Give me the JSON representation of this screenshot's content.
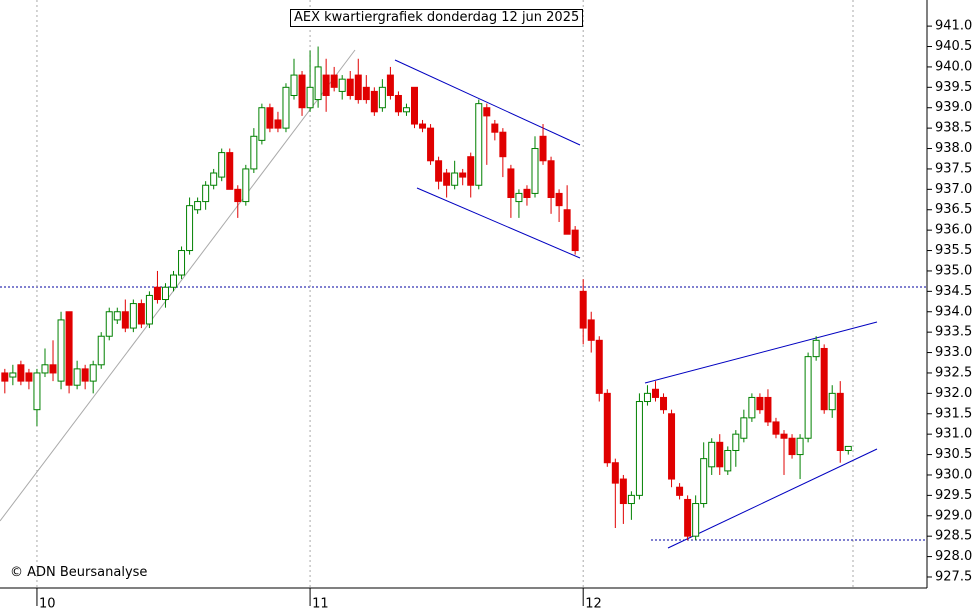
{
  "chart_data": {
    "type": "candlestick",
    "title": "AEX kwartiergrafiek donderdag 12 jun 2025",
    "credit": "© ADN Beursanalyse",
    "x": [
      -4,
      -3,
      -2,
      -1,
      0,
      1,
      2,
      3,
      4,
      5,
      6,
      7,
      8,
      9,
      10,
      11,
      12,
      13,
      14,
      15,
      16,
      17,
      18,
      19,
      20,
      21,
      22,
      23,
      24,
      25,
      26,
      27,
      28,
      29,
      30,
      31,
      32,
      33,
      34,
      35,
      36,
      37,
      38,
      39,
      40,
      41,
      42,
      43,
      44,
      45,
      46,
      47,
      48,
      49,
      50,
      51,
      52,
      53,
      54,
      55,
      56,
      57,
      58,
      59,
      60,
      61,
      62,
      63,
      64,
      65,
      66,
      67,
      68,
      69,
      70,
      71,
      72,
      73,
      74,
      75,
      76,
      77,
      78,
      79,
      80,
      81,
      82,
      83,
      84,
      85,
      86,
      87,
      88,
      89,
      90,
      91,
      92,
      93,
      94,
      95,
      96,
      97,
      98,
      99,
      100,
      101
    ],
    "open": [
      932.5,
      932.4,
      932.7,
      932.5,
      931.6,
      932.5,
      932.7,
      932.3,
      934.0,
      932.2,
      932.6,
      932.3,
      932.7,
      933.4,
      933.8,
      934.0,
      933.6,
      934.2,
      933.7,
      934.6,
      934.3,
      934.6,
      934.9,
      935.5,
      936.5,
      936.7,
      937.1,
      937.3,
      937.9,
      937.0,
      936.7,
      937.5,
      938.2,
      939.0,
      938.7,
      938.5,
      939.3,
      939.8,
      939.0,
      939.2,
      939.8,
      939.8,
      939.4,
      939.7,
      939.8,
      939.5,
      939.4,
      939.0,
      939.8,
      939.3,
      938.9,
      939.5,
      938.6,
      938.5,
      937.7,
      937.4,
      937.1,
      937.4,
      937.8,
      937.1,
      939.0,
      938.6,
      938.4,
      937.5,
      936.7,
      937.0,
      936.9,
      938.3,
      937.7,
      936.9,
      936.5,
      936.0,
      934.5,
      933.8,
      933.3,
      932.0,
      930.3,
      929.9,
      929.3,
      929.5,
      931.8,
      932.1,
      931.9,
      931.5,
      929.7,
      929.4,
      928.5,
      929.3,
      930.2,
      930.8,
      930.1,
      930.6,
      930.9,
      931.4,
      931.9,
      931.9,
      931.3,
      931.0,
      930.9,
      930.5,
      930.9,
      932.9,
      933.1,
      931.6,
      932.0,
      930.6
    ],
    "high": [
      932.6,
      932.7,
      932.8,
      932.6,
      932.6,
      933.1,
      933.3,
      934.0,
      934.0,
      932.8,
      932.7,
      932.8,
      933.5,
      934.1,
      934.1,
      934.3,
      934.3,
      934.3,
      934.5,
      935.0,
      934.7,
      935.0,
      935.6,
      936.8,
      936.8,
      937.2,
      937.5,
      938.0,
      938.0,
      937.1,
      937.6,
      938.5,
      939.1,
      939.1,
      938.9,
      939.6,
      940.2,
      939.9,
      940.4,
      940.5,
      940.2,
      940.0,
      939.8,
      939.9,
      940.2,
      939.8,
      939.5,
      939.7,
      940.0,
      939.4,
      939.1,
      939.5,
      938.7,
      938.6,
      937.8,
      937.5,
      937.7,
      937.5,
      937.9,
      939.2,
      939.1,
      938.7,
      938.5,
      937.6,
      937.0,
      937.1,
      938.3,
      938.6,
      937.8,
      937.0,
      937.1,
      936.1,
      934.8,
      934.0,
      933.4,
      932.1,
      930.4,
      930.0,
      929.6,
      932.0,
      932.2,
      932.3,
      932.0,
      931.6,
      929.8,
      929.5,
      929.5,
      930.8,
      930.9,
      931.0,
      930.7,
      931.1,
      931.6,
      932.0,
      932.0,
      932.1,
      931.4,
      931.1,
      931.0,
      931.0,
      933.0,
      933.4,
      933.2,
      932.2,
      932.3,
      930.7
    ],
    "low": [
      932.0,
      932.2,
      932.2,
      932.1,
      931.2,
      932.4,
      932.3,
      932.1,
      932.0,
      932.1,
      932.1,
      932.0,
      932.6,
      933.3,
      933.7,
      933.5,
      933.5,
      933.6,
      933.6,
      934.2,
      934.1,
      934.5,
      934.8,
      935.4,
      936.4,
      936.5,
      937.0,
      937.2,
      937.0,
      936.3,
      936.6,
      937.4,
      938.1,
      938.4,
      938.4,
      938.4,
      939.2,
      938.8,
      938.9,
      939.0,
      938.9,
      939.4,
      939.2,
      939.2,
      939.1,
      939.1,
      938.8,
      938.9,
      939.2,
      938.8,
      938.8,
      938.5,
      938.4,
      937.6,
      937.0,
      936.8,
      937.0,
      937.1,
      936.8,
      937.0,
      937.6,
      938.2,
      937.3,
      936.3,
      936.3,
      936.6,
      936.8,
      937.6,
      936.4,
      936.2,
      935.9,
      935.4,
      933.2,
      933.0,
      931.8,
      930.2,
      928.7,
      928.8,
      928.9,
      929.4,
      931.7,
      931.8,
      931.5,
      929.7,
      929.4,
      928.4,
      928.4,
      929.2,
      930.0,
      930.0,
      930.0,
      930.2,
      930.8,
      931.3,
      931.5,
      931.2,
      930.9,
      930.0,
      930.4,
      929.9,
      930.8,
      932.8,
      931.5,
      931.4,
      930.3,
      930.5
    ],
    "close": [
      932.3,
      932.5,
      932.3,
      932.3,
      932.5,
      932.7,
      932.5,
      933.8,
      932.2,
      932.6,
      932.3,
      932.7,
      933.4,
      934.0,
      934.0,
      933.6,
      934.2,
      933.7,
      934.4,
      934.3,
      934.6,
      934.9,
      935.5,
      936.6,
      936.7,
      937.1,
      937.4,
      937.9,
      937.0,
      936.7,
      937.5,
      938.3,
      939.0,
      938.5,
      938.5,
      939.5,
      939.8,
      939.0,
      939.5,
      940.0,
      939.3,
      939.5,
      939.7,
      939.3,
      939.2,
      939.2,
      938.9,
      939.5,
      939.3,
      938.9,
      939.0,
      938.6,
      938.5,
      937.7,
      937.2,
      937.1,
      937.4,
      937.3,
      937.1,
      939.1,
      938.8,
      938.4,
      937.8,
      936.8,
      936.9,
      936.8,
      938.0,
      937.7,
      936.8,
      936.6,
      935.9,
      935.5,
      933.6,
      933.3,
      932.0,
      930.3,
      929.8,
      929.3,
      929.5,
      931.8,
      932.0,
      931.9,
      931.6,
      929.9,
      929.5,
      928.5,
      929.3,
      930.4,
      930.8,
      930.2,
      930.6,
      931.0,
      931.4,
      931.9,
      931.6,
      931.3,
      931.0,
      930.9,
      930.5,
      930.9,
      932.9,
      933.3,
      931.6,
      932.0,
      930.6,
      930.7
    ],
    "up_color": "#008000",
    "down_color": "#e00000",
    "xlim": [
      -4.6,
      110.8
    ],
    "xticks": [
      {
        "value": 0,
        "label": "10"
      },
      {
        "value": 34,
        "label": "11"
      },
      {
        "value": 68,
        "label": "12"
      }
    ],
    "ylim": [
      927.23,
      941.64
    ],
    "yticks": [
      927.5,
      {
        "value": 928,
        "label": "928.0"
      },
      928.5,
      {
        "value": 929,
        "label": "929.0"
      },
      929.5,
      {
        "value": 930,
        "label": "930.0"
      },
      930.5,
      {
        "value": 931,
        "label": "931.0"
      },
      931.5,
      {
        "value": 932,
        "label": "932.0"
      },
      932.5,
      {
        "value": 933,
        "label": "933.0"
      },
      933.5,
      {
        "value": 934,
        "label": "934.0"
      },
      934.5,
      {
        "value": 935,
        "label": "935.0"
      },
      935.5,
      {
        "value": 936,
        "label": "936.0"
      },
      936.5,
      {
        "value": 937,
        "label": "937.0"
      },
      937.5,
      {
        "value": 938,
        "label": "938.0"
      },
      938.5,
      {
        "value": 939,
        "label": "939.0"
      },
      939.5,
      {
        "value": 940,
        "label": "940.0"
      },
      940.5,
      {
        "value": 941,
        "label": "941.0"
      }
    ],
    "grid": true
  }
}
